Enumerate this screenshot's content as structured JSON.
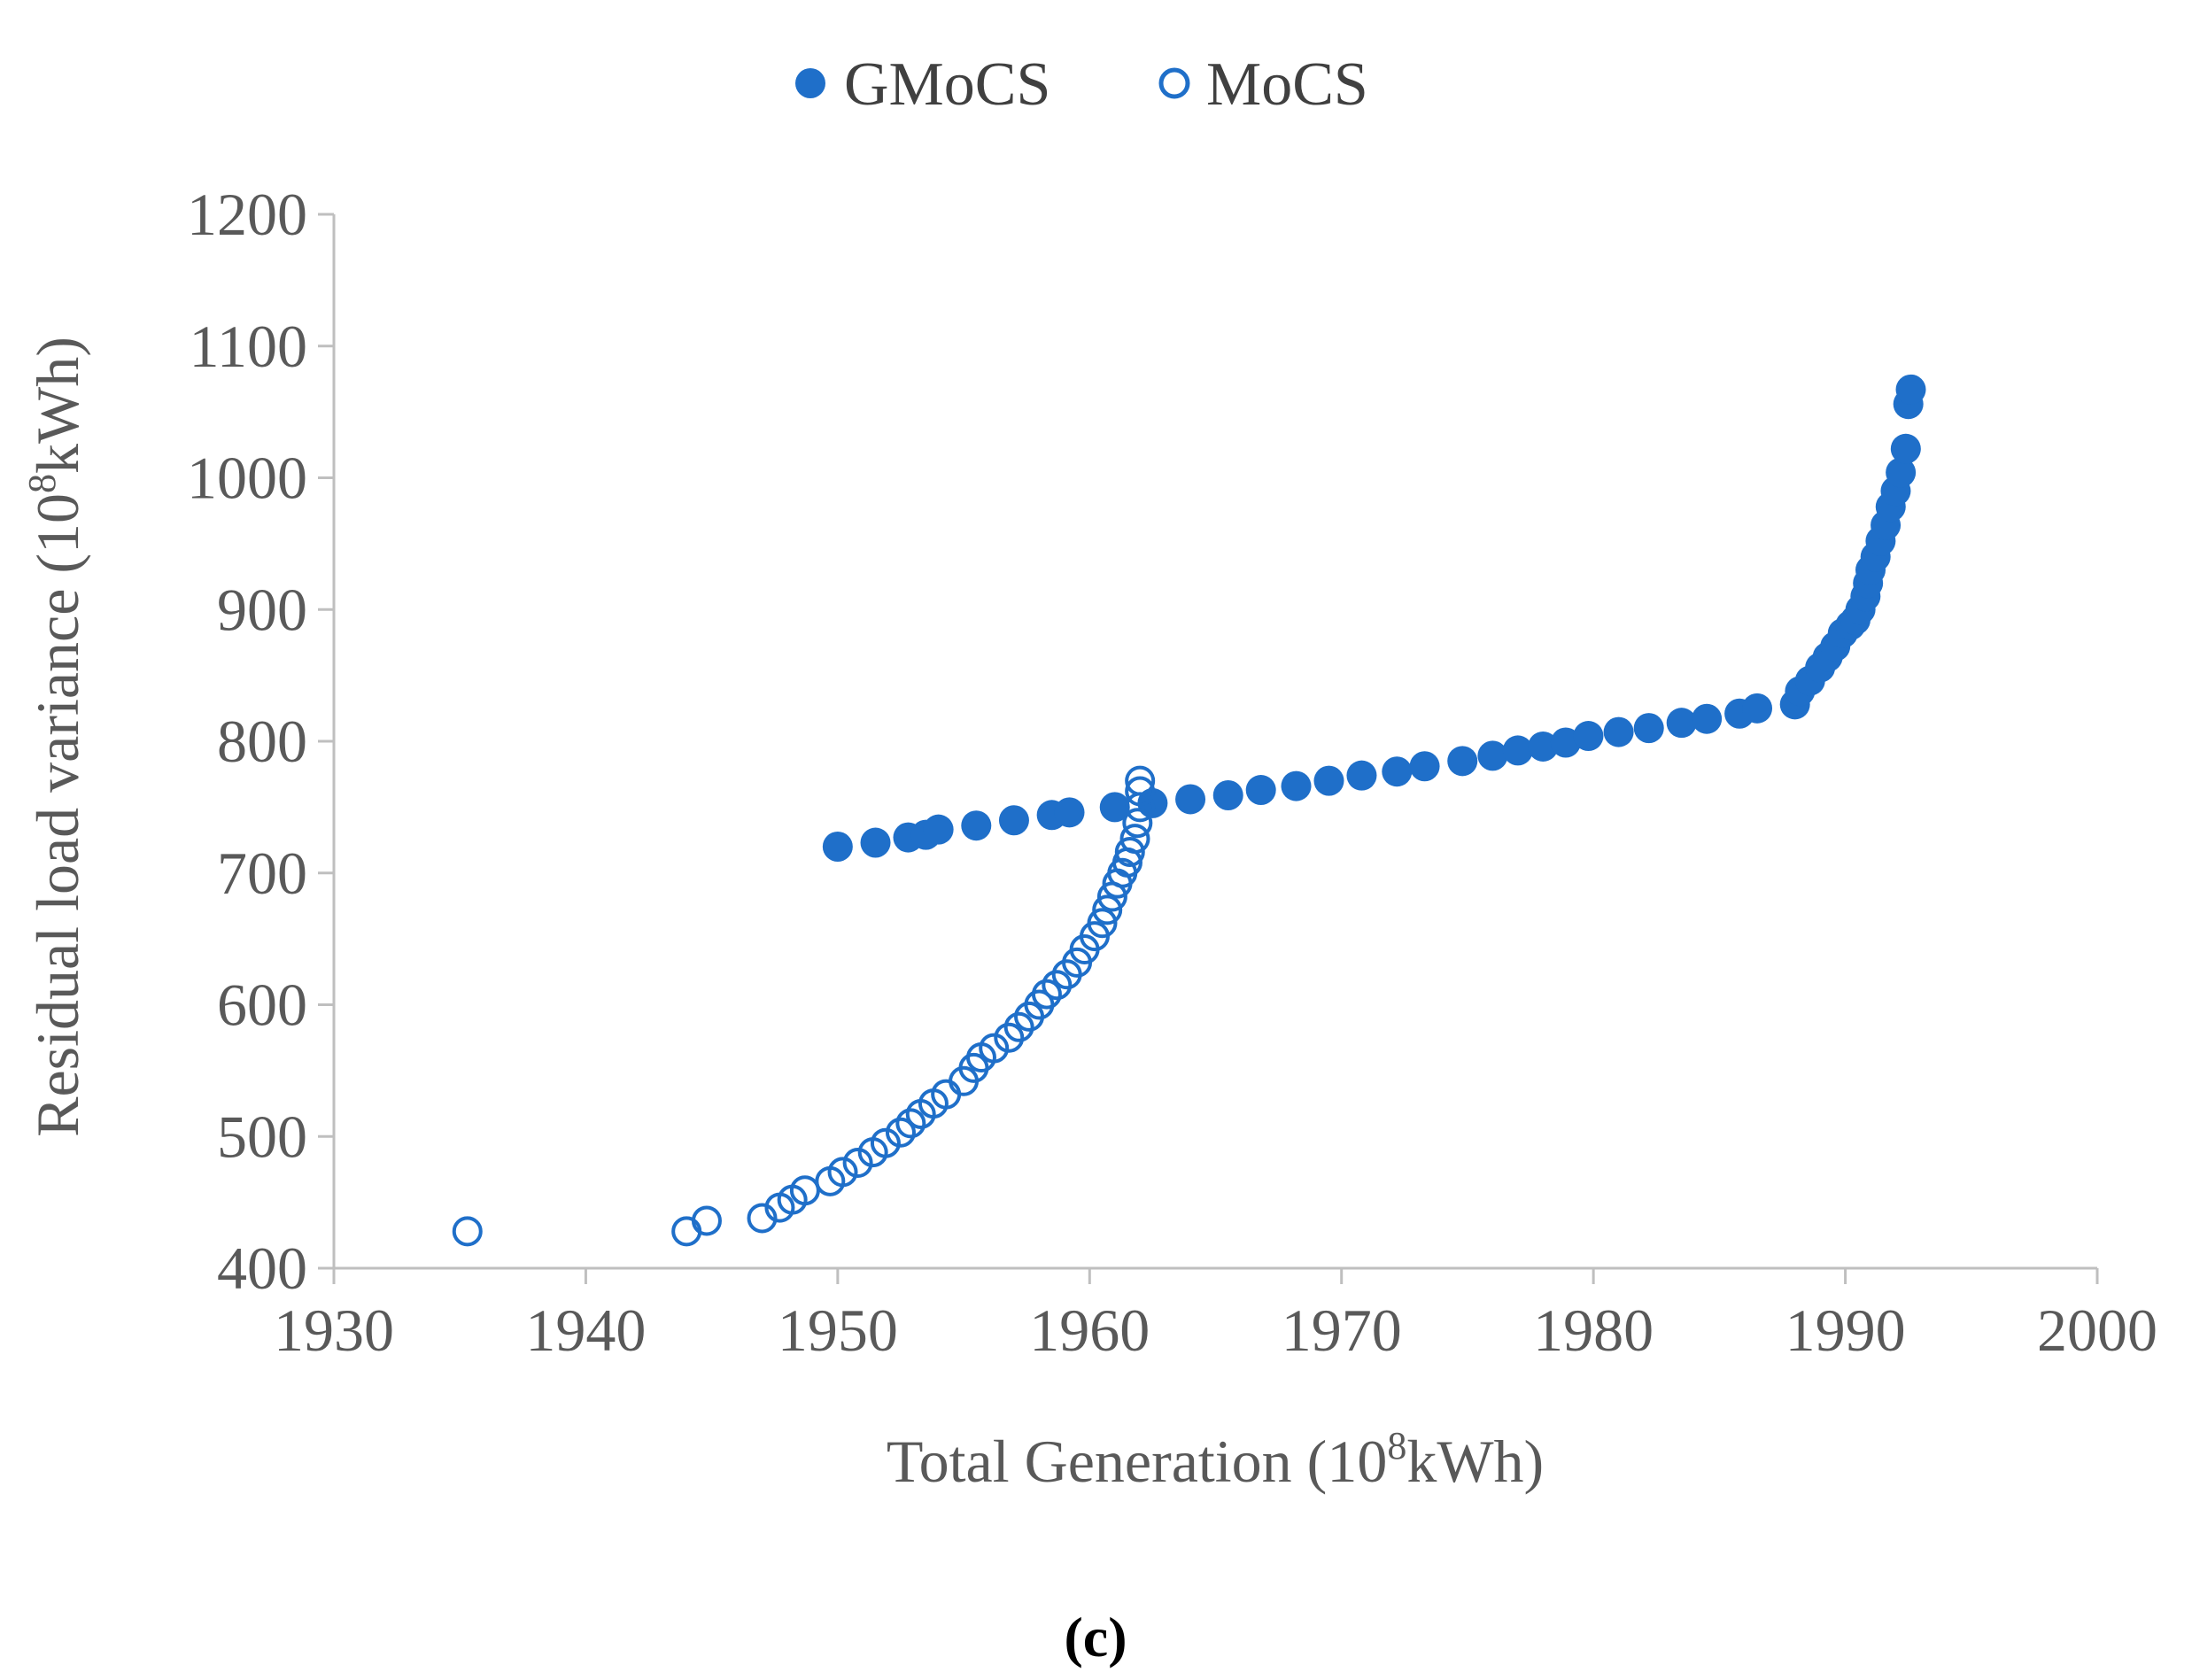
{
  "chart_data": {
    "type": "scatter",
    "title": "",
    "xlabel": "Total Generation (10",
    "xlabel_sup": "8",
    "xlabel_tail": "kWh)",
    "ylabel": "Residual load variance (10",
    "ylabel_sup": "8",
    "ylabel_tail": "kWh)",
    "xlim": [
      1930,
      2000
    ],
    "ylim": [
      400,
      1200
    ],
    "xticks": [
      "1930",
      "1940",
      "1950",
      "1960",
      "1970",
      "1980",
      "1990",
      "2000"
    ],
    "yticks": [
      "400",
      "500",
      "600",
      "700",
      "800",
      "900",
      "1000",
      "1100",
      "1200"
    ],
    "grid": false,
    "legend_position": "top-center",
    "panel_label": "(c)",
    "colors": {
      "series": "#1f6fc9",
      "axis": "#bfbfbf",
      "text": "#595959"
    },
    "series": [
      {
        "name": "GMoCS",
        "marker": "filled-circle",
        "x": [
          1950.0,
          1951.5,
          1952.8,
          1953.5,
          1954.0,
          1955.5,
          1957.0,
          1958.5,
          1959.2,
          1961.0,
          1962.5,
          1964.0,
          1965.5,
          1966.8,
          1968.2,
          1969.5,
          1970.8,
          1972.2,
          1973.3,
          1974.8,
          1976.0,
          1977.0,
          1978.0,
          1978.9,
          1979.8,
          1981.0,
          1982.2,
          1983.5,
          1984.5,
          1985.8,
          1986.5,
          1988.0,
          1988.2,
          1988.6,
          1989.0,
          1989.3,
          1989.6,
          1989.9,
          1990.2,
          1990.4,
          1990.6,
          1990.8,
          1990.9,
          1991.0,
          1991.2,
          1991.4,
          1991.6,
          1991.8,
          1992.0,
          1992.2,
          1992.4,
          1992.5,
          1992.6
        ],
        "y": [
          720,
          723,
          727,
          729,
          733,
          736,
          740,
          744,
          746,
          750,
          753,
          756,
          759,
          763,
          766,
          770,
          774,
          777,
          781,
          785,
          789,
          793,
          796,
          799,
          804,
          807,
          810,
          814,
          817,
          821,
          825,
          828,
          838,
          846,
          856,
          864,
          872,
          882,
          888,
          892,
          900,
          910,
          920,
          930,
          940,
          952,
          964,
          978,
          990,
          1004,
          1022,
          1056,
          1067
        ]
      },
      {
        "name": "MoCS",
        "marker": "hollow-circle",
        "x": [
          1935.3,
          1944.0,
          1944.8,
          1947.0,
          1947.7,
          1948.2,
          1948.7,
          1949.7,
          1950.2,
          1950.8,
          1951.4,
          1951.9,
          1952.5,
          1952.9,
          1953.3,
          1953.8,
          1954.3,
          1955.0,
          1955.4,
          1955.7,
          1956.2,
          1956.8,
          1957.2,
          1957.6,
          1958.0,
          1958.3,
          1958.7,
          1959.1,
          1959.5,
          1959.8,
          1960.2,
          1960.5,
          1960.7,
          1960.9,
          1961.1,
          1961.3,
          1961.5,
          1961.6,
          1961.8,
          1961.9,
          1962.0,
          1962.0,
          1962.0
        ],
        "y": [
          428,
          428,
          436,
          438,
          446,
          452,
          459,
          466,
          473,
          480,
          488,
          495,
          503,
          510,
          517,
          525,
          532,
          542,
          552,
          560,
          567,
          575,
          583,
          591,
          600,
          608,
          615,
          623,
          632,
          642,
          652,
          662,
          672,
          682,
          692,
          700,
          708,
          716,
          726,
          738,
          750,
          762,
          770
        ]
      }
    ]
  }
}
